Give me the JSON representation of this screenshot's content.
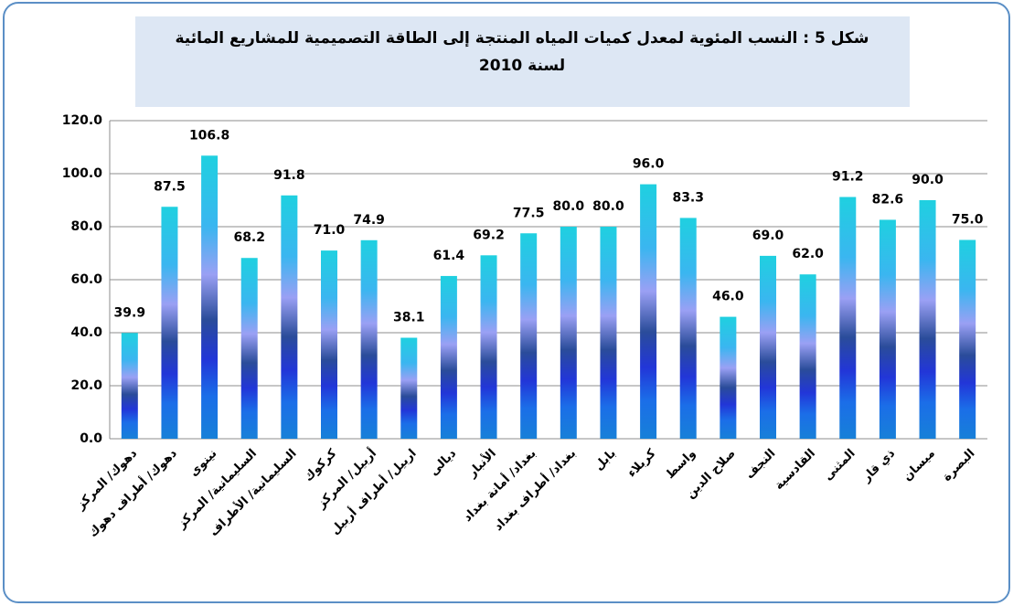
{
  "chart_data": {
    "type": "bar",
    "title": "شكل 5 : النسب المئوية لمعدل كميات المياه المنتجة إلى الطاقة التصميمية للمشاريع المائية",
    "subtitle": "لسنة 2010",
    "categories": [
      "دهوك/ المركز",
      "دهوك/ أطراف دهوك",
      "نينوى",
      "السليمانية/ المركز",
      "السليمانية/ الأطراف",
      "كركوك",
      "أربيل/ المركز",
      "اربيل/ أطراف أربيل",
      "ديالى",
      "الأنبار",
      "بغداد/ أمانة بغداد",
      "بغداد/ أطراف بغداد",
      "بابل",
      "كربلاء",
      "واسط",
      "صلاح الدين",
      "النجف",
      "القادسية",
      "المثنى",
      "ذي قار",
      "ميسان",
      "البصرة"
    ],
    "values": [
      39.9,
      87.5,
      106.8,
      68.2,
      91.8,
      71.0,
      74.9,
      38.1,
      61.4,
      69.2,
      77.5,
      80.0,
      80.0,
      96.0,
      83.3,
      46.0,
      69.0,
      62.0,
      91.2,
      82.6,
      90.0,
      75.0
    ],
    "value_labels": [
      "39.9",
      "87.5",
      "106.8",
      "68.2",
      "91.8",
      "71.0",
      "74.9",
      "38.1",
      "61.4",
      "69.2",
      "77.5",
      "80.0",
      "80.0",
      "96.0",
      "83.3",
      "46.0",
      "69.0",
      "62.0",
      "91.2",
      "82.6",
      "90.0",
      "75.0"
    ],
    "ylim": [
      0,
      120
    ],
    "yticks": [
      {
        "value": 0,
        "label": "0.0"
      },
      {
        "value": 20,
        "label": "20.0"
      },
      {
        "value": 40,
        "label": "40.0"
      },
      {
        "value": 60,
        "label": "60.0"
      },
      {
        "value": 80,
        "label": "80.0"
      },
      {
        "value": 100,
        "label": "100.0"
      },
      {
        "value": 120,
        "label": "120.0"
      }
    ],
    "grid": true
  }
}
